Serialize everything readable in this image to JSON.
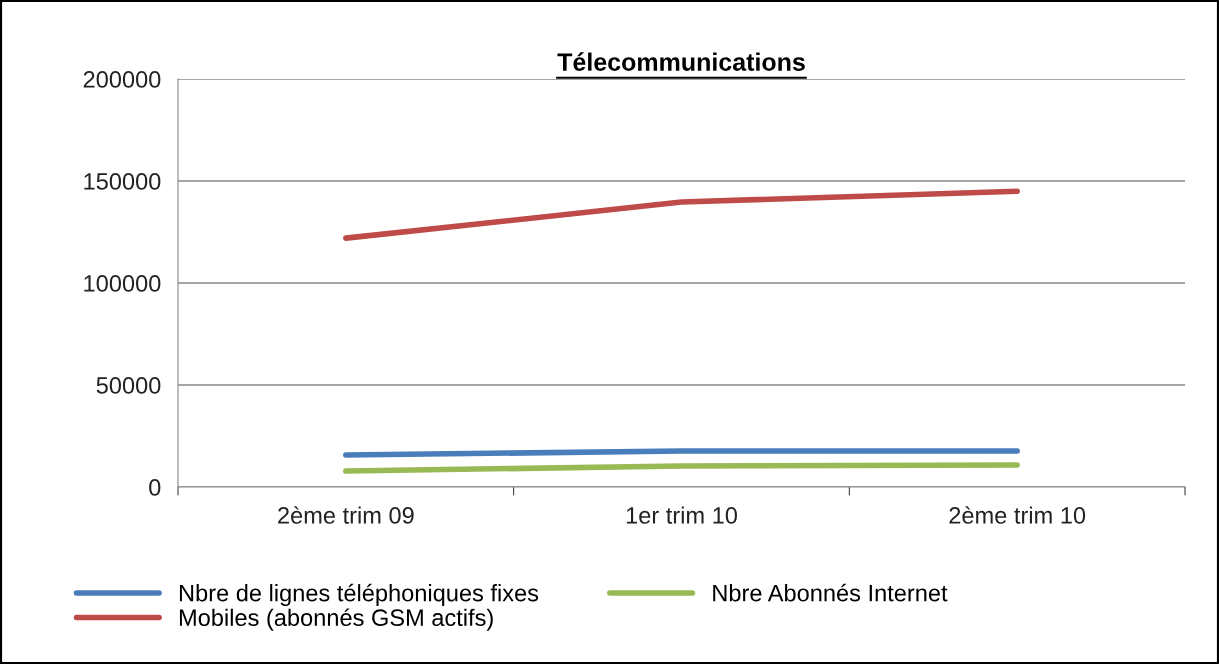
{
  "chart_data": {
    "type": "line",
    "title": "Télecommunications",
    "categories": [
      "2ème trim 09",
      "1er trim 10",
      "2ème trim 10"
    ],
    "series": [
      {
        "name": "Nbre de lignes téléphoniques fixes",
        "color": "#4a7ebb",
        "values": [
          15700,
          17600,
          17600
        ]
      },
      {
        "name": "Mobiles (abonnés GSM actifs)",
        "color": "#be4b48",
        "values": [
          122000,
          139700,
          145000
        ]
      },
      {
        "name": "Nbre Abonnés Internet",
        "color": "#98b954",
        "values": [
          7800,
          10300,
          10800
        ]
      }
    ],
    "ylim": [
      0,
      200000
    ],
    "yticks": [
      0,
      50000,
      100000,
      150000,
      200000
    ],
    "grid": "y",
    "legend": "bottom",
    "marker": "none",
    "line_style": "solid"
  }
}
